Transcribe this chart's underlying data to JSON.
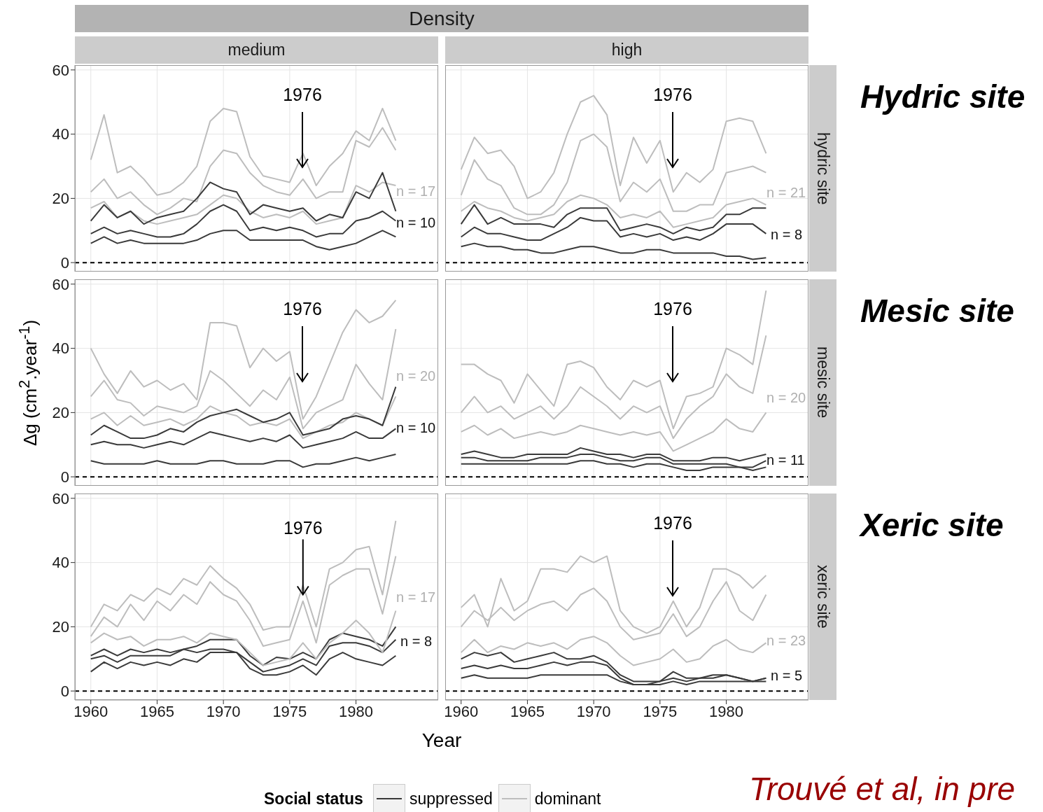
{
  "chart_data": [
    {
      "type": "line",
      "title": "medium",
      "subtitle": "Density",
      "x": [
        1960,
        1961,
        1962,
        1963,
        1964,
        1965,
        1966,
        1967,
        1968,
        1969,
        1970,
        1971,
        1972,
        1973,
        1974,
        1975,
        1976,
        1977,
        1978,
        1979,
        1980,
        1981,
        1982,
        1983
      ],
      "xlim": [
        1958.8,
        1986.2
      ],
      "ylim": [
        -2.8,
        61.5
      ],
      "xticks": [
        1960,
        1965,
        1970,
        1975,
        1980
      ],
      "yticks": [
        0,
        20,
        40,
        60
      ],
      "grid": true,
      "tick_labels": "y",
      "ref_lines": [
        {
          "axis": "y",
          "value": 0,
          "line_style": "dashed",
          "color": "#000000"
        }
      ],
      "annotations": [
        "1976",
        "n = 17",
        "n = 10"
      ],
      "series": [
        {
          "color": "#bdbdbd",
          "values": [
            32,
            46,
            28,
            30,
            26,
            21,
            22,
            25,
            30,
            44,
            48,
            47,
            33,
            27,
            26,
            25,
            34,
            24,
            30,
            34,
            41,
            38,
            48,
            38
          ]
        },
        {
          "color": "#bdbdbd",
          "values": [
            22,
            26,
            20,
            22,
            18,
            15,
            17,
            20,
            19,
            30,
            35,
            34,
            28,
            24,
            22,
            21,
            26,
            20,
            22,
            22,
            38,
            36,
            42,
            35
          ]
        },
        {
          "color": "#bdbdbd",
          "values": [
            17,
            19,
            14,
            16,
            13,
            12,
            13,
            14,
            15,
            18,
            21,
            20,
            16,
            14,
            15,
            14,
            16,
            12,
            13,
            14,
            24,
            22,
            25,
            24
          ]
        },
        {
          "color": "#3a3a3a",
          "values": [
            13,
            18,
            14,
            16,
            12,
            14,
            15,
            16,
            20,
            25,
            23,
            22,
            15,
            18,
            17,
            16,
            17,
            13,
            15,
            14,
            22,
            20,
            28,
            16
          ]
        },
        {
          "color": "#3a3a3a",
          "values": [
            9,
            11,
            9,
            10,
            9,
            8,
            8,
            9,
            12,
            16,
            18,
            16,
            10,
            11,
            10,
            11,
            10,
            8,
            9,
            9,
            13,
            14,
            16,
            13
          ]
        },
        {
          "color": "#3a3a3a",
          "values": [
            6,
            8,
            6,
            7,
            6,
            6,
            6,
            6,
            7,
            9,
            10,
            10,
            7,
            7,
            7,
            7,
            7,
            5,
            4,
            5,
            6,
            8,
            10,
            8
          ]
        }
      ]
    },
    {
      "type": "line",
      "title": "high",
      "y2label": "hydric site",
      "x": [
        1960,
        1961,
        1962,
        1963,
        1964,
        1965,
        1966,
        1967,
        1968,
        1969,
        1970,
        1971,
        1972,
        1973,
        1974,
        1975,
        1976,
        1977,
        1978,
        1979,
        1980,
        1981,
        1982,
        1983
      ],
      "xlim": [
        1958.8,
        1986.2
      ],
      "ylim": [
        -2.8,
        61.5
      ],
      "xticks": [
        1960,
        1965,
        1970,
        1975,
        1980
      ],
      "yticks": [
        0,
        20,
        40,
        60
      ],
      "grid": true,
      "tick_labels": false,
      "ref_lines": [
        {
          "axis": "y",
          "value": 0,
          "line_style": "dashed",
          "color": "#000000"
        }
      ],
      "annotations": [
        "Hydric site",
        "1976",
        "n = 21",
        "n = 8"
      ],
      "series": [
        {
          "color": "#bdbdbd",
          "values": [
            29,
            39,
            34,
            35,
            30,
            20,
            22,
            28,
            40,
            50,
            52,
            46,
            24,
            39,
            31,
            38,
            22,
            28,
            25,
            29,
            44,
            45,
            44,
            34
          ]
        },
        {
          "color": "#bdbdbd",
          "values": [
            21,
            32,
            26,
            24,
            17,
            15,
            15,
            18,
            25,
            38,
            40,
            36,
            19,
            25,
            22,
            26,
            16,
            16,
            18,
            18,
            28,
            29,
            30,
            28
          ]
        },
        {
          "color": "#bdbdbd",
          "values": [
            16,
            19,
            17,
            16,
            14,
            13,
            14,
            15,
            19,
            21,
            20,
            18,
            14,
            15,
            14,
            16,
            11,
            12,
            13,
            14,
            18,
            19,
            20,
            18
          ]
        },
        {
          "color": "#3a3a3a",
          "values": [
            12,
            18,
            12,
            14,
            12,
            12,
            12,
            11,
            15,
            17,
            17,
            17,
            10,
            11,
            12,
            11,
            9,
            11,
            10,
            11,
            15,
            15,
            17,
            17
          ]
        },
        {
          "color": "#3a3a3a",
          "values": [
            8,
            11,
            9,
            9,
            8,
            7,
            7,
            9,
            11,
            14,
            13,
            13,
            8,
            9,
            8,
            9,
            7,
            8,
            7,
            9,
            12,
            12,
            12,
            9
          ]
        },
        {
          "color": "#3a3a3a",
          "values": [
            5,
            6,
            5,
            5,
            4,
            4,
            3,
            3,
            4,
            5,
            5,
            4,
            3,
            3,
            4,
            4,
            3,
            3,
            3,
            3,
            2,
            2,
            1,
            1.5
          ]
        }
      ]
    },
    {
      "type": "line",
      "ylabel": "Δg (cm$^{2}$.year$^{-1}$)",
      "x": [
        1960,
        1961,
        1962,
        1963,
        1964,
        1965,
        1966,
        1967,
        1968,
        1969,
        1970,
        1971,
        1972,
        1973,
        1974,
        1975,
        1976,
        1977,
        1978,
        1979,
        1980,
        1981,
        1982,
        1983
      ],
      "xlim": [
        1958.8,
        1986.2
      ],
      "ylim": [
        -2.8,
        61.5
      ],
      "xticks": [
        1960,
        1965,
        1970,
        1975,
        1980
      ],
      "yticks": [
        0,
        20,
        40,
        60
      ],
      "grid": true,
      "tick_labels": "y",
      "ref_lines": [
        {
          "axis": "y",
          "value": 0,
          "line_style": "dashed",
          "color": "#000000"
        }
      ],
      "annotations": [
        "1976",
        "n = 20",
        "n = 10"
      ],
      "series": [
        {
          "color": "#bdbdbd",
          "values": [
            40,
            32,
            26,
            33,
            28,
            30,
            27,
            29,
            24,
            48,
            48,
            47,
            34,
            40,
            36,
            39,
            18,
            25,
            35,
            45,
            52,
            48,
            50,
            55
          ]
        },
        {
          "color": "#bdbdbd",
          "values": [
            25,
            30,
            24,
            23,
            19,
            22,
            21,
            20,
            22,
            33,
            30,
            26,
            22,
            27,
            24,
            31,
            15,
            20,
            22,
            24,
            35,
            29,
            24,
            46
          ]
        },
        {
          "color": "#bdbdbd",
          "values": [
            18,
            20,
            16,
            19,
            16,
            17,
            18,
            16,
            18,
            22,
            20,
            19,
            16,
            17,
            16,
            18,
            12,
            14,
            16,
            17,
            20,
            18,
            16,
            25
          ]
        },
        {
          "color": "#3a3a3a",
          "values": [
            13,
            16,
            14,
            12,
            12,
            13,
            15,
            14,
            17,
            19,
            20,
            21,
            19,
            17,
            18,
            20,
            13,
            14,
            15,
            18,
            19,
            18,
            16,
            28
          ]
        },
        {
          "color": "#3a3a3a",
          "values": [
            10,
            11,
            10,
            10,
            9,
            10,
            11,
            10,
            12,
            14,
            13,
            12,
            11,
            12,
            11,
            13,
            9,
            10,
            11,
            12,
            14,
            12,
            12,
            15
          ]
        },
        {
          "color": "#3a3a3a",
          "values": [
            5,
            4,
            4,
            4,
            4,
            5,
            4,
            4,
            4,
            5,
            5,
            4,
            4,
            4,
            5,
            5,
            3,
            4,
            4,
            5,
            6,
            5,
            6,
            7
          ]
        }
      ]
    },
    {
      "type": "line",
      "y2label": "mesic site",
      "x": [
        1960,
        1961,
        1962,
        1963,
        1964,
        1965,
        1966,
        1967,
        1968,
        1969,
        1970,
        1971,
        1972,
        1973,
        1974,
        1975,
        1976,
        1977,
        1978,
        1979,
        1980,
        1981,
        1982,
        1983
      ],
      "xlim": [
        1958.8,
        1986.2
      ],
      "ylim": [
        -2.8,
        61.5
      ],
      "xticks": [
        1960,
        1965,
        1970,
        1975,
        1980
      ],
      "yticks": [
        0,
        20,
        40,
        60
      ],
      "grid": true,
      "tick_labels": false,
      "ref_lines": [
        {
          "axis": "y",
          "value": 0,
          "line_style": "dashed",
          "color": "#000000"
        }
      ],
      "annotations": [
        "Mesic site",
        "1976",
        "n = 20",
        "n = 11"
      ],
      "series": [
        {
          "color": "#bdbdbd",
          "values": [
            35,
            35,
            32,
            30,
            23,
            32,
            27,
            22,
            35,
            36,
            34,
            28,
            24,
            30,
            28,
            30,
            15,
            25,
            26,
            28,
            40,
            38,
            35,
            58
          ]
        },
        {
          "color": "#bdbdbd",
          "values": [
            20,
            25,
            20,
            22,
            18,
            20,
            22,
            18,
            22,
            28,
            25,
            22,
            18,
            22,
            20,
            22,
            12,
            18,
            22,
            25,
            32,
            28,
            26,
            44
          ]
        },
        {
          "color": "#bdbdbd",
          "values": [
            14,
            16,
            13,
            15,
            12,
            13,
            14,
            13,
            14,
            16,
            15,
            14,
            13,
            14,
            13,
            14,
            8,
            10,
            12,
            14,
            18,
            15,
            14,
            20
          ]
        },
        {
          "color": "#3a3a3a",
          "values": [
            7,
            8,
            7,
            6,
            6,
            7,
            7,
            7,
            7,
            9,
            8,
            7,
            7,
            6,
            7,
            7,
            5,
            5,
            5,
            6,
            6,
            5,
            6,
            7
          ]
        },
        {
          "color": "#3a3a3a",
          "values": [
            6,
            6,
            5,
            5,
            5,
            5,
            6,
            6,
            6,
            7,
            7,
            6,
            5,
            5,
            6,
            6,
            4,
            4,
            4,
            4,
            4,
            3,
            3,
            5
          ]
        },
        {
          "color": "#3a3a3a",
          "values": [
            4,
            4,
            4,
            4,
            4,
            4,
            4,
            4,
            4,
            5,
            5,
            4,
            4,
            3,
            4,
            4,
            3,
            2,
            2,
            3,
            3,
            3,
            2,
            3
          ]
        }
      ]
    },
    {
      "type": "line",
      "xlabel": "Year",
      "legend": "bottom",
      "legend_title": "Social status",
      "x": [
        1960,
        1961,
        1962,
        1963,
        1964,
        1965,
        1966,
        1967,
        1968,
        1969,
        1970,
        1971,
        1972,
        1973,
        1974,
        1975,
        1976,
        1977,
        1978,
        1979,
        1980,
        1981,
        1982,
        1983
      ],
      "xlim": [
        1958.8,
        1986.2
      ],
      "ylim": [
        -2.8,
        61.5
      ],
      "xticks": [
        1960,
        1965,
        1970,
        1975,
        1980
      ],
      "yticks": [
        0,
        20,
        40,
        60
      ],
      "grid": true,
      "ref_lines": [
        {
          "axis": "y",
          "value": 0,
          "line_style": "dashed",
          "color": "#000000"
        }
      ],
      "annotations": [
        {
          "text": "1976",
          "x": 1976,
          "y": 30
        },
        "n = 17",
        "n = 8"
      ],
      "series": [
        {
          "name": "suppressed",
          "color": "#3a3a3a",
          "values": [
            11,
            13,
            11,
            13,
            12,
            13,
            12,
            13,
            14,
            16,
            16,
            16,
            11,
            8,
            10.5,
            10,
            12,
            10,
            16,
            18,
            17,
            16,
            14,
            20
          ]
        },
        {
          "color": "#3a3a3a",
          "values": [
            10,
            11,
            9,
            11,
            11,
            11,
            11,
            13,
            12,
            13,
            13,
            12,
            9,
            6,
            7,
            8,
            10,
            8,
            14,
            15,
            15,
            14,
            12,
            16
          ]
        },
        {
          "color": "#3a3a3a",
          "values": [
            6,
            9,
            7,
            9,
            8,
            9,
            8,
            10,
            9,
            12,
            12,
            12,
            7,
            5,
            5,
            6,
            8,
            5,
            10,
            12,
            10,
            9,
            8,
            11
          ]
        },
        {
          "name": "dominant",
          "color": "#bdbdbd",
          "values": [
            20,
            27,
            25,
            30,
            28,
            32,
            30,
            35,
            33,
            39,
            35,
            32,
            27,
            19,
            20,
            20,
            33,
            20,
            38,
            40,
            44,
            45,
            30,
            53
          ]
        },
        {
          "color": "#bdbdbd",
          "values": [
            17,
            23,
            20,
            27,
            22,
            28,
            25,
            30,
            27,
            34,
            30,
            28,
            22,
            14,
            15,
            16,
            28,
            15,
            33,
            36,
            38,
            38,
            24,
            42
          ]
        },
        {
          "color": "#bdbdbd",
          "values": [
            15,
            18,
            16,
            17,
            14,
            16,
            16,
            17,
            15,
            18,
            17,
            16,
            12,
            8,
            9,
            10,
            15,
            10,
            15,
            18,
            22,
            18,
            12,
            25
          ]
        }
      ]
    },
    {
      "type": "line",
      "y2label": "xeric site",
      "x": [
        1960,
        1961,
        1962,
        1963,
        1964,
        1965,
        1966,
        1967,
        1968,
        1969,
        1970,
        1971,
        1972,
        1973,
        1974,
        1975,
        1976,
        1977,
        1978,
        1979,
        1980,
        1981,
        1982,
        1983
      ],
      "xlim": [
        1958.8,
        1986.2
      ],
      "ylim": [
        -2.8,
        61.5
      ],
      "xticks": [
        1960,
        1965,
        1970,
        1975,
        1980
      ],
      "yticks": [
        0,
        20,
        40,
        60
      ],
      "grid": true,
      "tick_labels": "x",
      "ref_lines": [
        {
          "axis": "y",
          "value": 0,
          "line_style": "dashed",
          "color": "#000000"
        }
      ],
      "annotations": [
        "Xeric site",
        "Trouvé et al, in pre",
        "1976",
        "n = 23",
        "n = 5"
      ],
      "series": [
        {
          "color": "#bdbdbd",
          "values": [
            26,
            30,
            20,
            35,
            25,
            28,
            38,
            38,
            37,
            42,
            40,
            42,
            25,
            20,
            18,
            20,
            28,
            20,
            26,
            38,
            38,
            36,
            32,
            36
          ]
        },
        {
          "color": "#bdbdbd",
          "values": [
            20,
            25,
            22,
            26,
            22,
            25,
            27,
            28,
            25,
            30,
            32,
            28,
            20,
            16,
            17,
            18,
            24,
            17,
            20,
            28,
            34,
            25,
            22,
            30
          ]
        },
        {
          "color": "#bdbdbd",
          "values": [
            12,
            16,
            12,
            14,
            13,
            15,
            14,
            15,
            13,
            16,
            17,
            15,
            11,
            8,
            9,
            10,
            13,
            9,
            10,
            14,
            16,
            13,
            12,
            15
          ]
        },
        {
          "color": "#3a3a3a",
          "values": [
            10,
            12,
            11,
            12,
            9,
            10,
            11,
            12,
            10,
            10,
            11,
            9,
            5,
            3,
            3,
            3,
            6,
            4,
            4,
            5,
            5,
            4,
            3,
            4
          ]
        },
        {
          "color": "#3a3a3a",
          "values": [
            7,
            8,
            7,
            8,
            7,
            7,
            8,
            9,
            8,
            9,
            9,
            8,
            4,
            2,
            2,
            3,
            4,
            3,
            4,
            4,
            5,
            4,
            3,
            4
          ]
        },
        {
          "color": "#3a3a3a",
          "values": [
            4,
            5,
            4,
            4,
            4,
            4,
            5,
            5,
            5,
            5,
            5,
            5,
            3,
            2,
            2,
            2,
            3,
            2,
            3,
            3,
            3,
            3,
            3,
            3
          ]
        }
      ]
    }
  ]
}
